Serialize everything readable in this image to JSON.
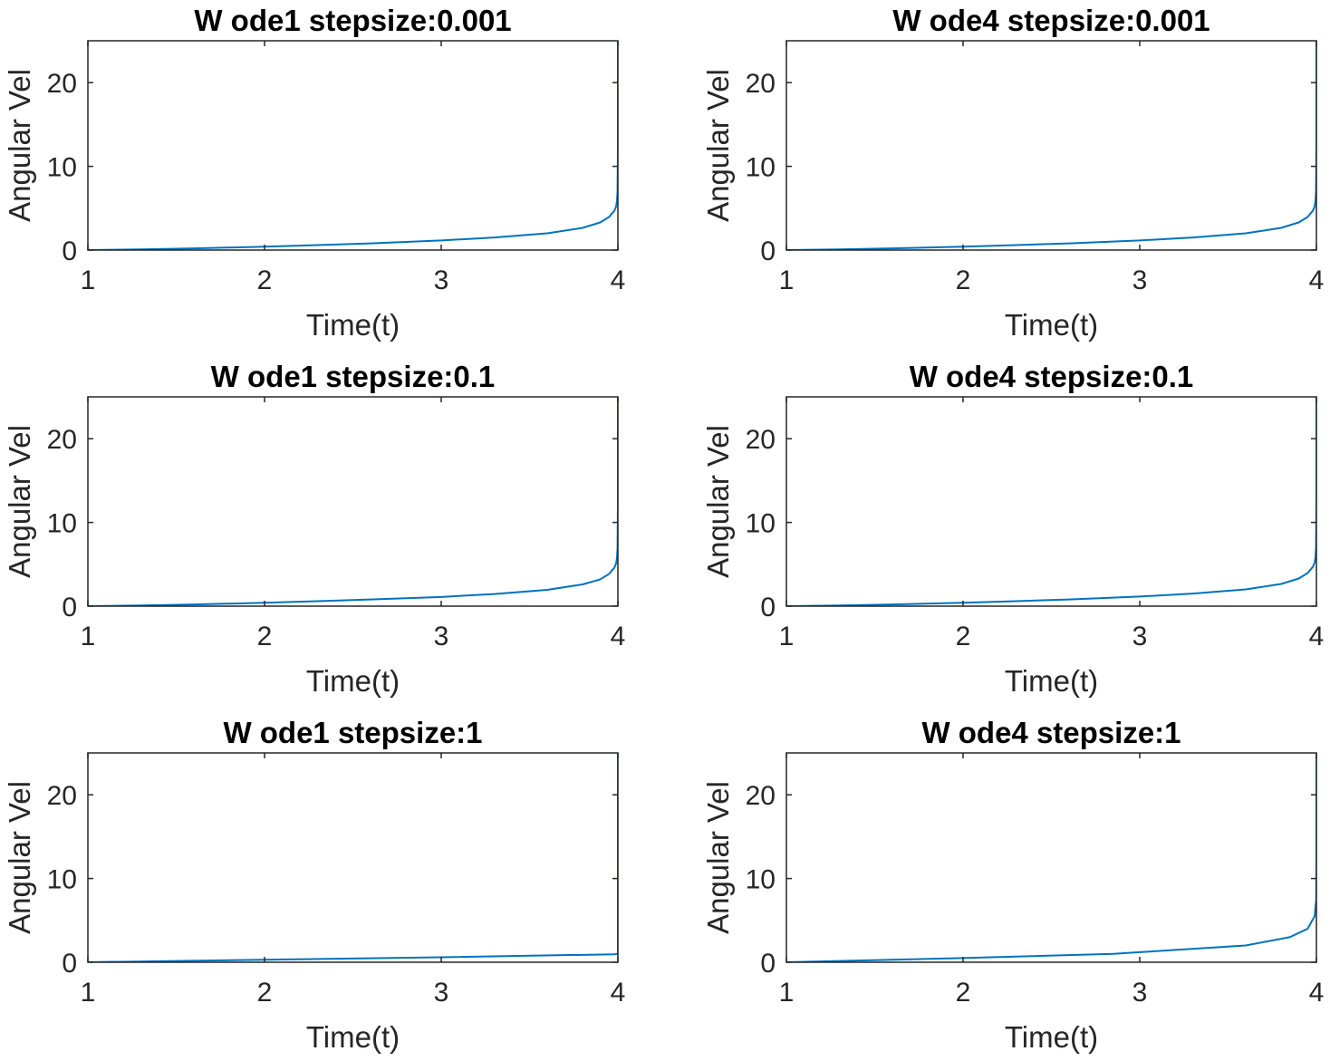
{
  "chart_data": [
    {
      "type": "line",
      "title": "W ode1 stepsize:0.001",
      "xlabel": "Time(t)",
      "ylabel": "Angular Vel",
      "xlim": [
        1,
        4
      ],
      "ylim": [
        0,
        25
      ],
      "xticks": [
        1,
        2,
        3,
        4
      ],
      "yticks": [
        0,
        10,
        20
      ],
      "grid": false,
      "line_color": "#0072BD",
      "series": [
        {
          "x": [
            1.0,
            1.3,
            1.6,
            2.0,
            2.3,
            2.6,
            3.0,
            3.3,
            3.6,
            3.8,
            3.9,
            3.95,
            3.98,
            3.99,
            3.995,
            3.998,
            4.0,
            4.0
          ],
          "y": [
            0.0,
            0.08,
            0.2,
            0.4,
            0.6,
            0.8,
            1.15,
            1.5,
            2.0,
            2.65,
            3.3,
            3.95,
            4.7,
            5.2,
            5.9,
            7.0,
            12.0,
            25.0
          ]
        }
      ]
    },
    {
      "type": "line",
      "title": "W ode4 stepsize:0.001",
      "xlabel": "Time(t)",
      "ylabel": "Angular Vel",
      "xlim": [
        1,
        4
      ],
      "ylim": [
        0,
        25
      ],
      "xticks": [
        1,
        2,
        3,
        4
      ],
      "yticks": [
        0,
        10,
        20
      ],
      "grid": false,
      "line_color": "#0072BD",
      "series": [
        {
          "x": [
            1.0,
            1.3,
            1.6,
            2.0,
            2.3,
            2.6,
            3.0,
            3.3,
            3.6,
            3.8,
            3.9,
            3.95,
            3.98,
            3.99,
            3.995,
            3.998,
            4.0,
            4.0
          ],
          "y": [
            0.0,
            0.08,
            0.2,
            0.4,
            0.6,
            0.8,
            1.15,
            1.5,
            2.0,
            2.65,
            3.3,
            3.95,
            4.7,
            5.2,
            5.9,
            7.0,
            12.0,
            25.0
          ]
        }
      ]
    },
    {
      "type": "line",
      "title": "W ode1 stepsize:0.1",
      "xlabel": "Time(t)",
      "ylabel": "Angular Vel",
      "xlim": [
        1,
        4
      ],
      "ylim": [
        0,
        25
      ],
      "xticks": [
        1,
        2,
        3,
        4
      ],
      "yticks": [
        0,
        10,
        20
      ],
      "grid": false,
      "line_color": "#0072BD",
      "series": [
        {
          "x": [
            1.0,
            1.3,
            1.6,
            2.0,
            2.3,
            2.6,
            3.0,
            3.3,
            3.6,
            3.8,
            3.9,
            3.95,
            3.98,
            3.99,
            3.995,
            3.998,
            4.0,
            4.0
          ],
          "y": [
            0.0,
            0.08,
            0.2,
            0.4,
            0.6,
            0.8,
            1.1,
            1.45,
            1.95,
            2.6,
            3.2,
            3.85,
            4.6,
            5.1,
            5.8,
            6.9,
            12.0,
            25.0
          ]
        }
      ]
    },
    {
      "type": "line",
      "title": "W ode4 stepsize:0.1",
      "xlabel": "Time(t)",
      "ylabel": "Angular Vel",
      "xlim": [
        1,
        4
      ],
      "ylim": [
        0,
        25
      ],
      "xticks": [
        1,
        2,
        3,
        4
      ],
      "yticks": [
        0,
        10,
        20
      ],
      "grid": false,
      "line_color": "#0072BD",
      "series": [
        {
          "x": [
            1.0,
            1.3,
            1.6,
            2.0,
            2.3,
            2.6,
            3.0,
            3.3,
            3.6,
            3.8,
            3.9,
            3.95,
            3.98,
            3.99,
            3.995,
            3.998,
            4.0,
            4.0
          ],
          "y": [
            0.0,
            0.08,
            0.2,
            0.4,
            0.6,
            0.8,
            1.15,
            1.5,
            2.0,
            2.65,
            3.3,
            3.95,
            4.7,
            5.2,
            5.9,
            7.0,
            12.0,
            25.0
          ]
        }
      ]
    },
    {
      "type": "line",
      "title": "W ode1 stepsize:1",
      "xlabel": "Time(t)",
      "ylabel": "Angular Vel",
      "xlim": [
        1,
        4
      ],
      "ylim": [
        0,
        25
      ],
      "xticks": [
        1,
        2,
        3,
        4
      ],
      "yticks": [
        0,
        10,
        20
      ],
      "grid": false,
      "line_color": "#0072BD",
      "series": [
        {
          "x": [
            1.0,
            2.0,
            3.0,
            3.98,
            4.0,
            4.0
          ],
          "y": [
            0.0,
            0.3,
            0.6,
            0.95,
            1.0,
            25.0
          ]
        }
      ]
    },
    {
      "type": "line",
      "title": "W ode4 stepsize:1",
      "xlabel": "Time(t)",
      "ylabel": "Angular Vel",
      "xlim": [
        1,
        4
      ],
      "ylim": [
        0,
        25
      ],
      "xticks": [
        1,
        2,
        3,
        4
      ],
      "yticks": [
        0,
        10,
        20
      ],
      "grid": false,
      "line_color": "#0072BD",
      "series": [
        {
          "x": [
            1.0,
            2.0,
            2.85,
            3.0,
            3.6,
            3.85,
            3.95,
            3.99,
            3.999,
            4.0,
            4.0
          ],
          "y": [
            0.0,
            0.5,
            1.0,
            1.2,
            2.0,
            3.0,
            4.0,
            5.5,
            7.5,
            12.0,
            25.0
          ]
        }
      ]
    }
  ]
}
